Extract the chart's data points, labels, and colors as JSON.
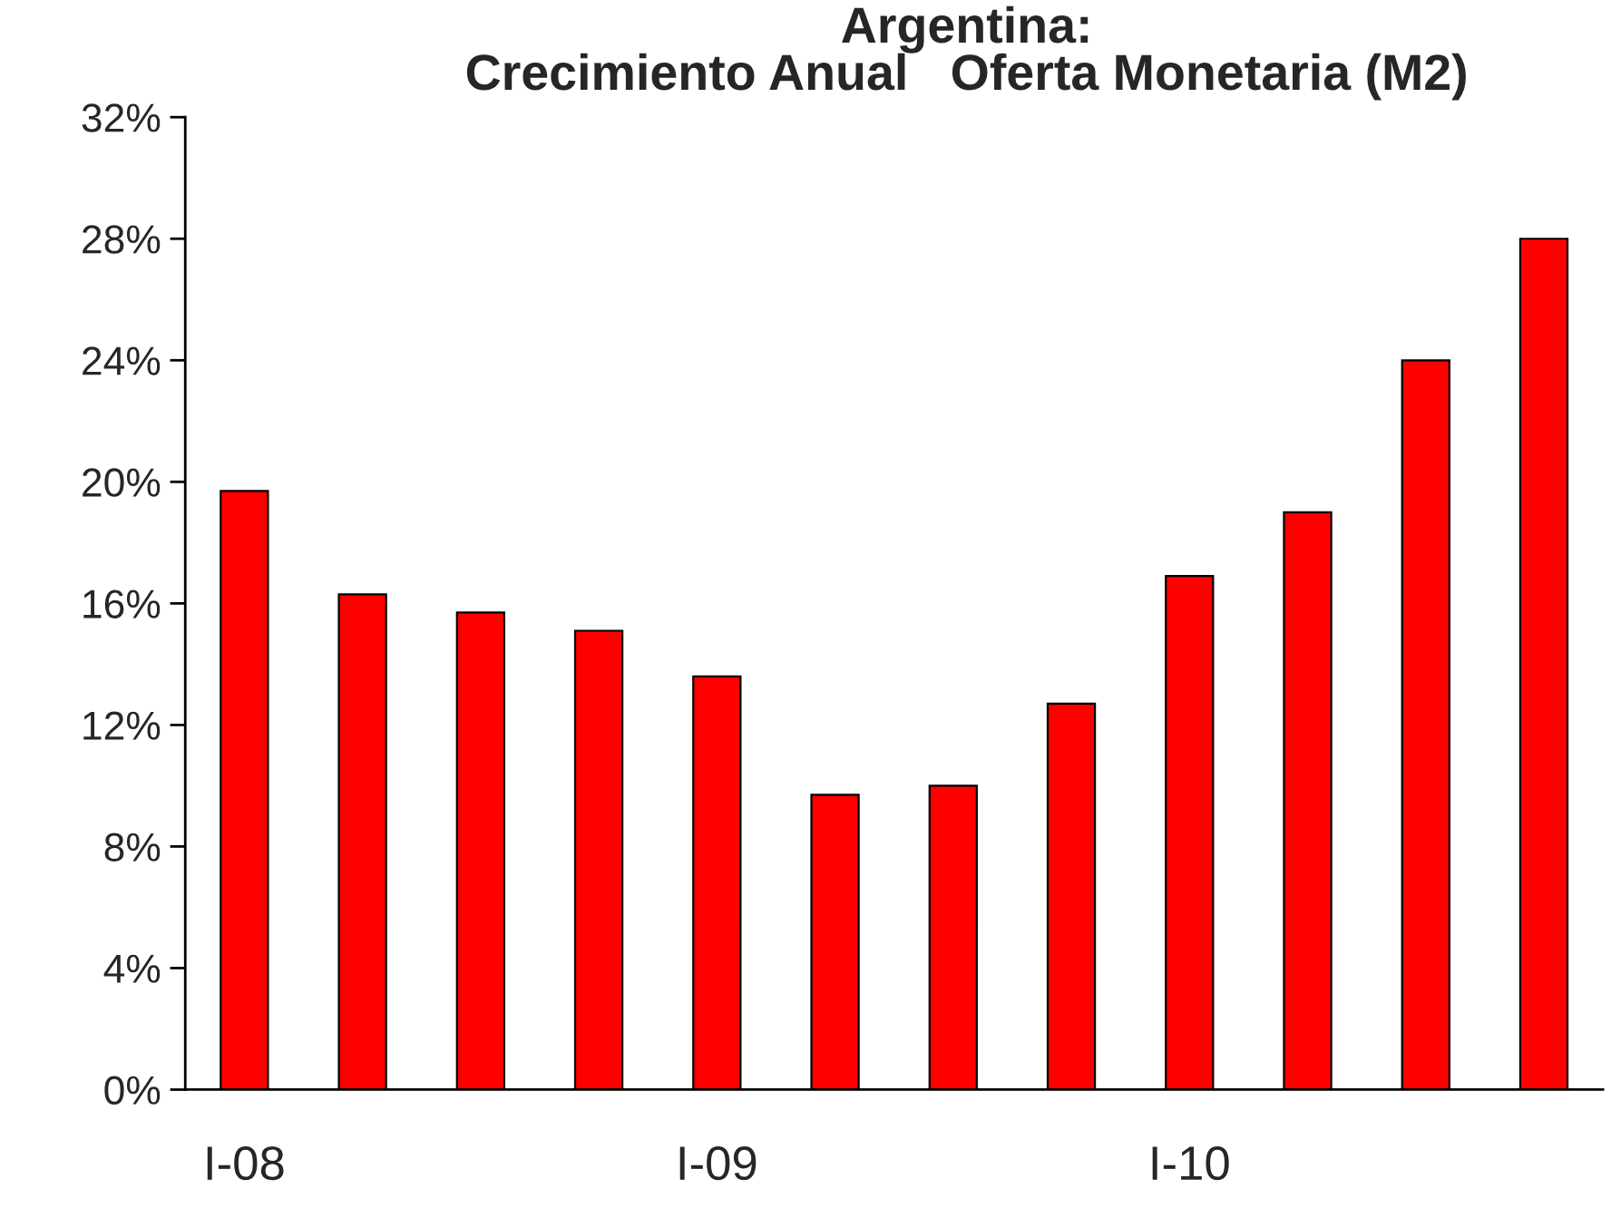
{
  "chart_data": {
    "type": "bar",
    "title": "Argentina:\nCrecimiento Anual   Oferta Monetaria (M2)",
    "categories": [
      "I-08",
      null,
      null,
      null,
      "I-09",
      null,
      null,
      null,
      "I-10",
      null,
      null,
      null
    ],
    "values": [
      19.7,
      16.3,
      15.7,
      15.1,
      13.6,
      9.7,
      10.0,
      12.7,
      16.9,
      19.0,
      24.0,
      28.0
    ],
    "color": "#ff0000",
    "ylim": [
      0,
      32
    ],
    "yticks": [
      {
        "value": 0,
        "label": "0%"
      },
      {
        "value": 4,
        "label": "4%"
      },
      {
        "value": 8,
        "label": "8%"
      },
      {
        "value": 12,
        "label": "12%"
      },
      {
        "value": 16,
        "label": "16%"
      },
      {
        "value": 20,
        "label": "20%"
      },
      {
        "value": 24,
        "label": "24%"
      },
      {
        "value": 28,
        "label": "28%"
      },
      {
        "value": 32,
        "label": "32%"
      }
    ],
    "grid": false,
    "legend": false
  }
}
